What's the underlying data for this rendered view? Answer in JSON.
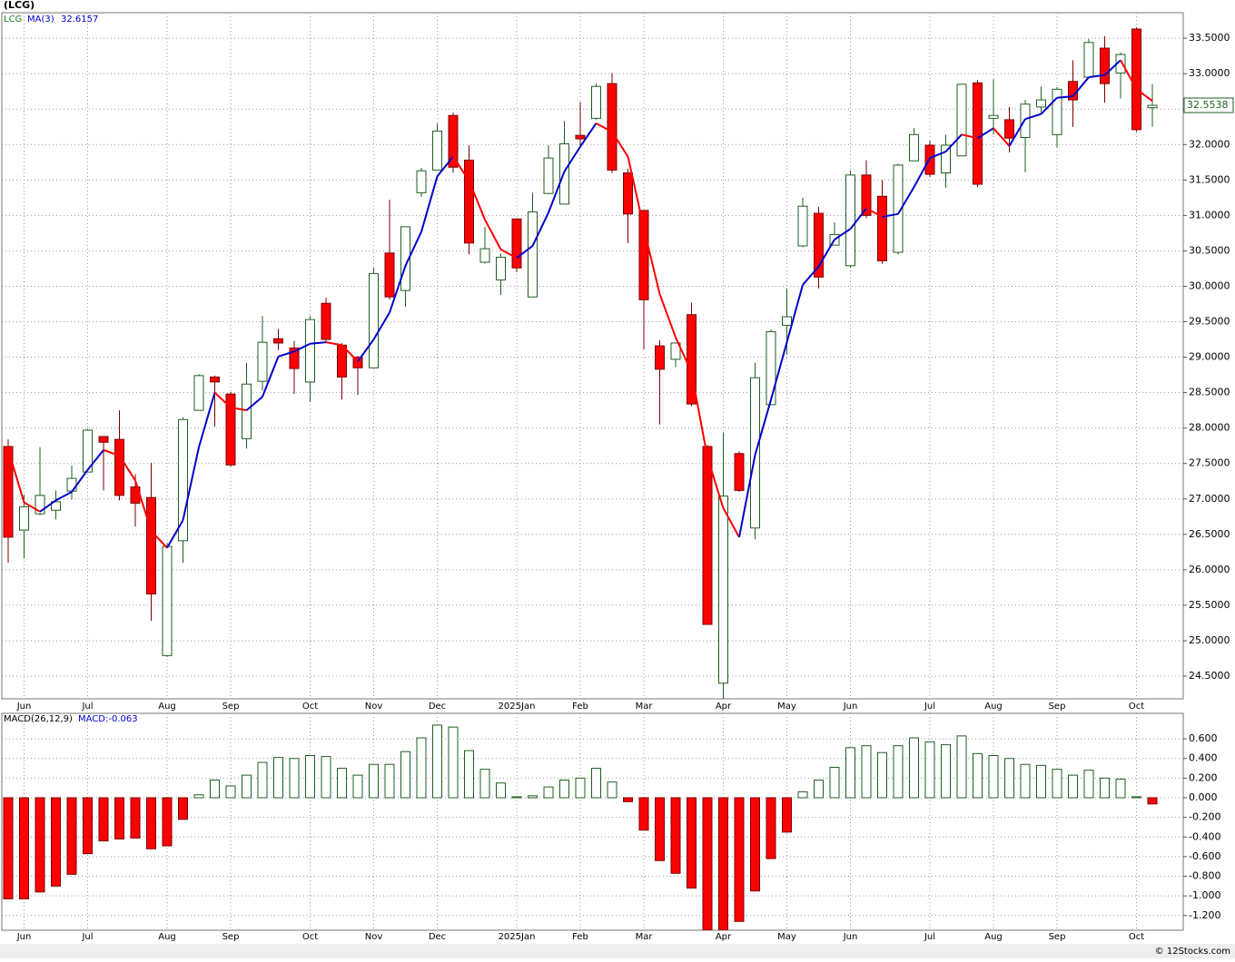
{
  "chart_data": [
    {
      "type": "candlestick",
      "title": "(LCG)",
      "symbol": "LCG",
      "categories": [
        null,
        "Jun",
        null,
        null,
        null,
        "Jul",
        null,
        null,
        null,
        null,
        "Aug",
        null,
        null,
        null,
        "Sep",
        null,
        null,
        null,
        null,
        "Oct",
        null,
        null,
        null,
        "Nov",
        null,
        null,
        null,
        "Dec",
        null,
        null,
        null,
        null,
        "2025Jan",
        null,
        null,
        null,
        "Feb",
        null,
        null,
        null,
        "Mar",
        null,
        null,
        null,
        null,
        "Apr",
        null,
        null,
        null,
        "May",
        null,
        null,
        null,
        "Jun",
        null,
        null,
        null,
        null,
        "Jul",
        null,
        null,
        null,
        "Aug",
        null,
        null,
        null,
        "Sep",
        null,
        null,
        null,
        null,
        "Oct",
        null
      ],
      "open": [
        27.74,
        26.56,
        26.79,
        26.84,
        27.11,
        27.38,
        27.88,
        27.84,
        27.17,
        27.02,
        24.79,
        26.41,
        28.25,
        28.72,
        28.48,
        27.85,
        28.66,
        29.26,
        29.13,
        28.65,
        29.76,
        29.17,
        29.0,
        28.85,
        30.47,
        29.94,
        31.32,
        31.64,
        32.41,
        31.78,
        30.34,
        30.09,
        30.95,
        29.85,
        31.31,
        31.16,
        32.13,
        32.37,
        32.86,
        31.6,
        31.07,
        29.16,
        28.97,
        29.6,
        27.74,
        24.4,
        27.64,
        26.59,
        28.33,
        29.45,
        30.57,
        31.03,
        30.58,
        30.29,
        31.57,
        31.27,
        30.48,
        31.77,
        31.99,
        31.6,
        31.84,
        32.87,
        32.37,
        32.35,
        32.1,
        32.53,
        32.14,
        32.89,
        32.95,
        33.36,
        33.01,
        33.63,
        32.52
      ],
      "high": [
        27.84,
        27.06,
        27.73,
        27.12,
        27.47,
        27.99,
        27.88,
        28.25,
        27.35,
        27.51,
        26.38,
        28.15,
        28.76,
        28.74,
        28.51,
        28.92,
        29.58,
        29.4,
        29.23,
        29.58,
        29.84,
        29.2,
        29.02,
        30.26,
        31.22,
        30.84,
        31.67,
        32.3,
        32.45,
        31.99,
        30.84,
        30.46,
        30.96,
        31.32,
        31.99,
        32.33,
        32.6,
        32.86,
        33.01,
        31.66,
        31.07,
        29.24,
        29.2,
        29.77,
        27.76,
        27.94,
        27.67,
        28.92,
        29.39,
        29.97,
        31.25,
        31.12,
        30.9,
        31.63,
        31.78,
        31.5,
        31.73,
        32.23,
        32.05,
        32.14,
        32.86,
        32.91,
        32.92,
        32.53,
        32.63,
        32.82,
        32.81,
        33.19,
        33.49,
        33.53,
        33.3,
        33.65,
        32.85
      ],
      "low": [
        26.1,
        26.16,
        26.77,
        26.71,
        26.99,
        27.38,
        27.12,
        26.98,
        26.61,
        25.28,
        24.77,
        26.1,
        28.25,
        28.02,
        27.46,
        27.71,
        28.53,
        29.1,
        28.48,
        28.37,
        29.22,
        28.4,
        28.47,
        28.85,
        29.81,
        29.71,
        31.26,
        31.64,
        31.6,
        30.45,
        30.32,
        29.88,
        30.2,
        29.85,
        31.3,
        31.16,
        31.99,
        32.35,
        31.6,
        30.61,
        29.11,
        28.05,
        28.86,
        28.31,
        25.23,
        23.9,
        27.1,
        26.43,
        28.33,
        29.04,
        30.55,
        29.97,
        30.58,
        30.26,
        30.96,
        30.32,
        30.45,
        31.77,
        31.54,
        31.39,
        31.84,
        31.4,
        32.14,
        31.89,
        31.61,
        32.44,
        31.96,
        32.25,
        32.95,
        32.59,
        32.65,
        32.18,
        32.25
      ],
      "close": [
        26.46,
        26.89,
        27.05,
        26.96,
        27.29,
        27.97,
        27.8,
        27.05,
        26.94,
        25.66,
        26.33,
        28.12,
        28.74,
        28.65,
        27.48,
        28.62,
        29.21,
        29.2,
        28.84,
        29.53,
        29.25,
        28.72,
        28.85,
        30.18,
        29.85,
        30.84,
        31.63,
        32.19,
        31.68,
        30.61,
        30.53,
        30.41,
        30.26,
        31.05,
        31.81,
        32.01,
        32.08,
        32.82,
        31.64,
        31.02,
        29.81,
        28.83,
        29.2,
        28.34,
        25.23,
        27.04,
        27.12,
        28.71,
        29.36,
        29.57,
        31.13,
        30.13,
        30.73,
        31.57,
        31.0,
        30.36,
        31.71,
        32.14,
        31.58,
        31.99,
        32.85,
        31.44,
        32.41,
        32.09,
        32.57,
        32.63,
        32.78,
        32.63,
        33.44,
        32.86,
        33.27,
        32.21,
        32.5538
      ],
      "up_color": "#ffffff",
      "up_edge": "#1f5f1f",
      "down_color": "#ff0000",
      "down_edge": "#7a0000",
      "ma": {
        "name": "MA(3)",
        "up_color": "#0000cc",
        "down_color": "#ff0000",
        "values": [
          27.7,
          26.95,
          26.82,
          26.98,
          27.1,
          27.41,
          27.69,
          27.61,
          27.26,
          26.55,
          26.31,
          26.7,
          27.73,
          28.5,
          28.29,
          28.25,
          28.44,
          29.01,
          29.08,
          29.19,
          29.21,
          29.17,
          28.94,
          29.25,
          29.63,
          30.29,
          30.77,
          31.55,
          31.83,
          31.49,
          30.94,
          30.52,
          30.4,
          30.57,
          31.04,
          31.62,
          31.97,
          32.3,
          32.18,
          31.83,
          30.82,
          29.89,
          29.28,
          28.79,
          27.59,
          26.87,
          26.46,
          27.62,
          28.4,
          29.21,
          30.02,
          30.28,
          30.66,
          30.81,
          31.1,
          30.98,
          31.02,
          31.4,
          31.81,
          31.9,
          32.14,
          32.09,
          32.23,
          31.98,
          32.36,
          32.43,
          32.66,
          32.68,
          32.95,
          32.98,
          33.19,
          32.78,
          32.6157
        ]
      },
      "ylim": [
        24.18,
        33.86
      ],
      "yticks": [
        {
          "value": 24.5,
          "label": "24.5000"
        },
        {
          "value": 25,
          "label": "25.0000"
        },
        {
          "value": 25.5,
          "label": "25.5000"
        },
        {
          "value": 26,
          "label": "26.0000"
        },
        {
          "value": 26.5,
          "label": "26.5000"
        },
        {
          "value": 27,
          "label": "27.0000"
        },
        {
          "value": 27.5,
          "label": "27.5000"
        },
        {
          "value": 28,
          "label": "28.0000"
        },
        {
          "value": 28.5,
          "label": "28.5000"
        },
        {
          "value": 29,
          "label": "29.0000"
        },
        {
          "value": 29.5,
          "label": "29.5000"
        },
        {
          "value": 30,
          "label": "30.0000"
        },
        {
          "value": 30.5,
          "label": "30.5000"
        },
        {
          "value": 31,
          "label": "31.0000"
        },
        {
          "value": 31.5,
          "label": "31.5000"
        },
        {
          "value": 32,
          "label": "32.0000"
        },
        {
          "value": 32.5,
          "label": "32.5000"
        },
        {
          "value": 33,
          "label": "33.0000"
        },
        {
          "value": 33.5,
          "label": "33.5000"
        }
      ],
      "grid": true
    },
    {
      "type": "bar",
      "title": "MACD(26,12,9)",
      "series_label": "MACD:-0.063",
      "values": [
        -1.03,
        -1.03,
        -0.96,
        -0.9,
        -0.78,
        -0.57,
        -0.44,
        -0.42,
        -0.41,
        -0.52,
        -0.49,
        -0.22,
        0.03,
        0.18,
        0.12,
        0.23,
        0.36,
        0.41,
        0.4,
        0.43,
        0.42,
        0.3,
        0.23,
        0.34,
        0.34,
        0.47,
        0.61,
        0.74,
        0.72,
        0.48,
        0.29,
        0.15,
        0.01,
        0.02,
        0.11,
        0.18,
        0.2,
        0.3,
        0.16,
        -0.04,
        -0.33,
        -0.64,
        -0.77,
        -0.92,
        -1.35,
        -1.35,
        -1.26,
        -0.95,
        -0.62,
        -0.35,
        0.06,
        0.18,
        0.31,
        0.51,
        0.53,
        0.46,
        0.53,
        0.61,
        0.57,
        0.54,
        0.63,
        0.45,
        0.43,
        0.4,
        0.34,
        0.33,
        0.29,
        0.23,
        0.28,
        0.2,
        0.19,
        0.01,
        -0.063
      ],
      "up_color": "#ffffff",
      "up_edge": "#1f5f1f",
      "down_color": "#ff0000",
      "down_edge": "#7a0000",
      "ylim": [
        -1.35,
        0.86
      ],
      "yticks": [
        {
          "value": 0.6,
          "label": "0.600"
        },
        {
          "value": 0.4,
          "label": "0.400"
        },
        {
          "value": 0.2,
          "label": "0.200"
        },
        {
          "value": 0,
          "label": "0.000"
        },
        {
          "value": -0.2,
          "label": "-0.200"
        },
        {
          "value": -0.4,
          "label": "-0.400"
        },
        {
          "value": -0.6,
          "label": "-0.600"
        },
        {
          "value": -0.8,
          "label": "-0.800"
        },
        {
          "value": -1.0,
          "label": "-1.000"
        },
        {
          "value": -1.2,
          "label": "-1.200"
        }
      ],
      "grid": true
    }
  ],
  "footer": "© 12Stocks.com"
}
